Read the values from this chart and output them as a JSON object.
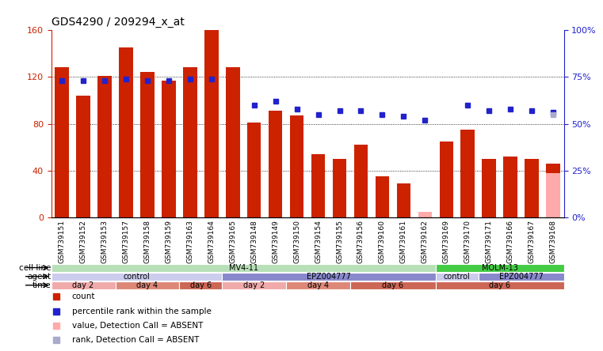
{
  "title": "GDS4290 / 209294_x_at",
  "samples": [
    "GSM739151",
    "GSM739152",
    "GSM739153",
    "GSM739157",
    "GSM739158",
    "GSM739159",
    "GSM739163",
    "GSM739164",
    "GSM739165",
    "GSM739148",
    "GSM739149",
    "GSM739150",
    "GSM739154",
    "GSM739155",
    "GSM739156",
    "GSM739160",
    "GSM739161",
    "GSM739162",
    "GSM739169",
    "GSM739170",
    "GSM739171",
    "GSM739166",
    "GSM739167",
    "GSM739168"
  ],
  "count_values": [
    128,
    104,
    121,
    145,
    124,
    117,
    128,
    160,
    128,
    81,
    91,
    87,
    54,
    50,
    62,
    35,
    29,
    null,
    65,
    75,
    50,
    52,
    50,
    46
  ],
  "rank_values": [
    73,
    73,
    73,
    74,
    73,
    73,
    74,
    74,
    null,
    60,
    62,
    58,
    55,
    57,
    57,
    55,
    54,
    52,
    null,
    60,
    57,
    58,
    57,
    56
  ],
  "absent_count": [
    null,
    null,
    null,
    null,
    null,
    null,
    null,
    null,
    null,
    null,
    null,
    null,
    null,
    null,
    null,
    null,
    null,
    5,
    null,
    null,
    null,
    null,
    null,
    38
  ],
  "absent_rank": [
    null,
    null,
    null,
    null,
    null,
    null,
    null,
    null,
    null,
    null,
    null,
    null,
    null,
    null,
    null,
    null,
    null,
    null,
    null,
    null,
    null,
    null,
    null,
    55
  ],
  "count_color": "#cc2200",
  "rank_color": "#2222cc",
  "absent_count_color": "#ffaaaa",
  "absent_rank_color": "#aaaacc",
  "ylim_left": [
    0,
    160
  ],
  "ylim_right": [
    0,
    100
  ],
  "yticks_left": [
    0,
    40,
    80,
    120,
    160
  ],
  "yticks_right": [
    0,
    25,
    50,
    75,
    100
  ],
  "ytick_labels_left": [
    "0",
    "40",
    "80",
    "120",
    "160"
  ],
  "ytick_labels_right": [
    "0%",
    "25%",
    "50%",
    "75%",
    "100%"
  ],
  "cell_line_groups": [
    {
      "label": "MV4-11",
      "start": 0,
      "end": 18,
      "color": "#b8e0b8"
    },
    {
      "label": "MOLM-13",
      "start": 18,
      "end": 24,
      "color": "#44cc44"
    }
  ],
  "agent_groups": [
    {
      "label": "control",
      "start": 0,
      "end": 8,
      "color": "#ccccee"
    },
    {
      "label": "EPZ004777",
      "start": 8,
      "end": 18,
      "color": "#8888cc"
    },
    {
      "label": "control",
      "start": 18,
      "end": 20,
      "color": "#ccccee"
    },
    {
      "label": "EPZ004777",
      "start": 20,
      "end": 24,
      "color": "#8888cc"
    }
  ],
  "time_groups": [
    {
      "label": "day 2",
      "start": 0,
      "end": 3,
      "color": "#f0aaaa"
    },
    {
      "label": "day 4",
      "start": 3,
      "end": 6,
      "color": "#dd8877"
    },
    {
      "label": "day 6",
      "start": 6,
      "end": 8,
      "color": "#cc6655"
    },
    {
      "label": "day 2",
      "start": 8,
      "end": 11,
      "color": "#f0aaaa"
    },
    {
      "label": "day 4",
      "start": 11,
      "end": 14,
      "color": "#dd8877"
    },
    {
      "label": "day 6",
      "start": 14,
      "end": 18,
      "color": "#cc6655"
    },
    {
      "label": "day 6",
      "start": 18,
      "end": 24,
      "color": "#cc6655"
    }
  ],
  "bg_color": "#ffffff",
  "plot_bg_color": "#ffffff",
  "grid_color": "#000000",
  "title_fontsize": 10,
  "row_labels": [
    "cell line",
    "agent",
    "time"
  ],
  "legend_items": [
    {
      "color": "#cc2200",
      "marker": "s",
      "label": "count"
    },
    {
      "color": "#2222cc",
      "marker": "s",
      "label": "percentile rank within the sample"
    },
    {
      "color": "#ffaaaa",
      "marker": "s",
      "label": "value, Detection Call = ABSENT"
    },
    {
      "color": "#aaaacc",
      "marker": "s",
      "label": "rank, Detection Call = ABSENT"
    }
  ]
}
